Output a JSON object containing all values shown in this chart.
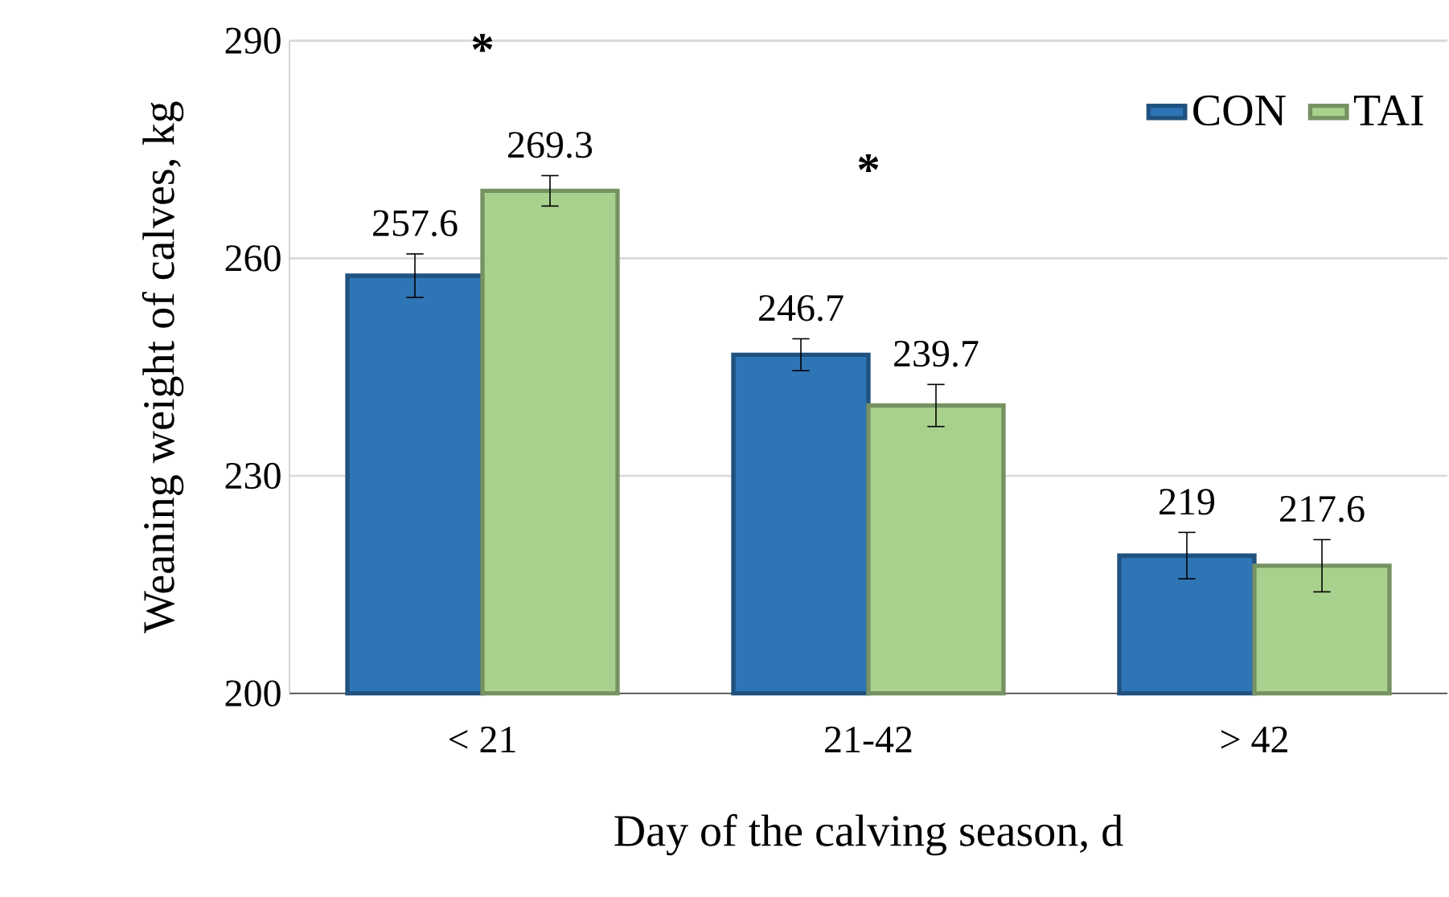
{
  "chart_data": {
    "type": "bar",
    "xlabel": "Day of the calving season, d",
    "ylabel": "Weaning weight of calves, kg",
    "categories": [
      "< 21",
      "21-42",
      "> 42"
    ],
    "series": [
      {
        "name": "CON",
        "color": "#2e75b6",
        "values": [
          257.6,
          246.7,
          219
        ],
        "errors": [
          3,
          2.2,
          3.2
        ]
      },
      {
        "name": "TAI",
        "color": "#a9d18e",
        "values": [
          269.3,
          239.7,
          217.6
        ],
        "errors": [
          2.1,
          2.9,
          3.6
        ]
      }
    ],
    "ylim": [
      200,
      290
    ],
    "yticks": [
      200,
      230,
      260,
      290
    ],
    "grid": "y",
    "legend": "top right",
    "data_labels": true,
    "annotations": [
      "*",
      "*"
    ]
  }
}
